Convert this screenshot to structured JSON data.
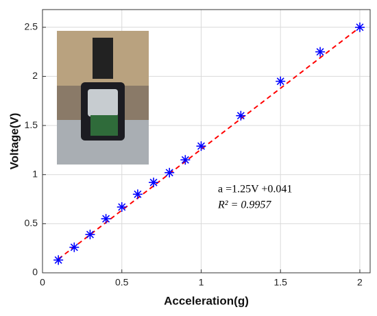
{
  "chart_data": {
    "type": "scatter",
    "xlabel": "Acceleration(g)",
    "ylabel": "Voltage(V)",
    "annotations": [
      "a =1.25V +0.041",
      "R² = 0.9957"
    ],
    "series": [
      {
        "color": "#0000ff",
        "marker": "asterisk",
        "x": [
          0.1,
          0.2,
          0.3,
          0.4,
          0.5,
          0.6,
          0.7,
          0.8,
          0.9,
          1.0,
          1.25,
          1.5,
          1.75,
          2.0
        ],
        "values": [
          0.13,
          0.26,
          0.39,
          0.55,
          0.67,
          0.8,
          0.92,
          1.02,
          1.15,
          1.29,
          1.6,
          1.95,
          2.25,
          2.5
        ]
      },
      {
        "color": "#ff0000",
        "style": "dashed",
        "x": [
          0.1,
          2.0
        ],
        "values": [
          0.14,
          2.5
        ]
      }
    ],
    "xlim": [
      0,
      2.065
    ],
    "xticks": [
      0,
      0.5,
      1,
      1.5,
      2
    ],
    "ylim": [
      0,
      2.68
    ],
    "yticks": [
      0,
      0.5,
      1,
      1.5,
      2,
      2.5
    ],
    "grid": true
  }
}
